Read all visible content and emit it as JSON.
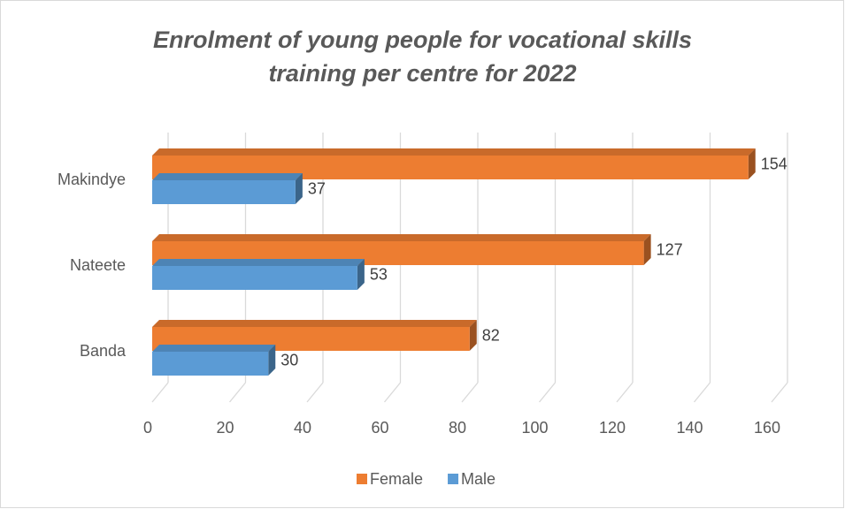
{
  "chart_data": {
    "type": "bar3d-horizontal",
    "title": "Enrolment of young people for vocational skills training per centre for 2022",
    "categories": [
      "Banda",
      "Nateete",
      "Makindye"
    ],
    "series": [
      {
        "name": "Female",
        "color": "#ed7d31",
        "values": [
          82,
          127,
          154
        ]
      },
      {
        "name": "Male",
        "color": "#5b9bd5",
        "values": [
          30,
          53,
          37
        ]
      }
    ],
    "xlim": [
      0,
      160
    ],
    "xticks": [
      0,
      20,
      40,
      60,
      80,
      100,
      120,
      140,
      160
    ],
    "grid": true,
    "legend": "bottom"
  }
}
